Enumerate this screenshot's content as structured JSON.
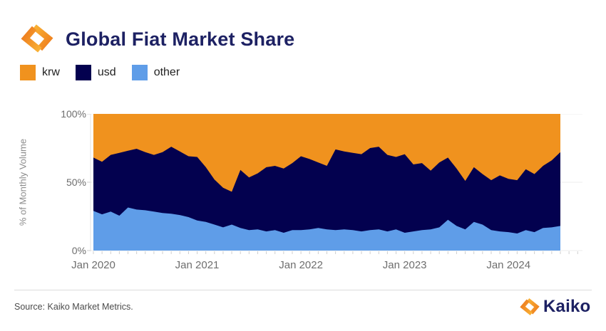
{
  "header": {
    "title": "Global Fiat Market Share"
  },
  "legend": {
    "items": [
      {
        "label": "krw",
        "color": "#F0921E"
      },
      {
        "label": "usd",
        "color": "#03014F"
      },
      {
        "label": "other",
        "color": "#5F9DE8"
      }
    ]
  },
  "chart_data": {
    "type": "area",
    "stacked": true,
    "stack_order_bottom_to_top": [
      "other",
      "usd",
      "krw"
    ],
    "title": "Global Fiat Market Share",
    "xlabel": "",
    "ylabel": "% of Monthly Volume",
    "ylim": [
      0,
      100
    ],
    "unit": "%",
    "grid": "horizontal lines at 0%, 50%, 100%",
    "legend_position": "top-left",
    "y_ticks": [
      {
        "label": "0%",
        "value": 0
      },
      {
        "label": "50%",
        "value": 50
      },
      {
        "label": "100%",
        "value": 100
      }
    ],
    "x_ticks": [
      {
        "label": "Jan 2020",
        "index": 0
      },
      {
        "label": "Jan 2021",
        "index": 12
      },
      {
        "label": "Jan 2022",
        "index": 24
      },
      {
        "label": "Jan 2023",
        "index": 36
      },
      {
        "label": "Jan 2024",
        "index": 48
      }
    ],
    "x": [
      "2020-01",
      "2020-02",
      "2020-03",
      "2020-04",
      "2020-05",
      "2020-06",
      "2020-07",
      "2020-08",
      "2020-09",
      "2020-10",
      "2020-11",
      "2020-12",
      "2021-01",
      "2021-02",
      "2021-03",
      "2021-04",
      "2021-05",
      "2021-06",
      "2021-07",
      "2021-08",
      "2021-09",
      "2021-10",
      "2021-11",
      "2021-12",
      "2022-01",
      "2022-02",
      "2022-03",
      "2022-04",
      "2022-05",
      "2022-06",
      "2022-07",
      "2022-08",
      "2022-09",
      "2022-10",
      "2022-11",
      "2022-12",
      "2023-01",
      "2023-02",
      "2023-03",
      "2023-04",
      "2023-05",
      "2023-06",
      "2023-07",
      "2023-08",
      "2023-09",
      "2023-10",
      "2023-11",
      "2023-12",
      "2024-01",
      "2024-02",
      "2024-03",
      "2024-04",
      "2024-05",
      "2024-06",
      "2024-07"
    ],
    "series": [
      {
        "name": "krw",
        "color": "#F0921E",
        "values": [
          32,
          35,
          30,
          28.5,
          27,
          25.5,
          28,
          30,
          28,
          24,
          27.5,
          31,
          31.5,
          39,
          48,
          54,
          57,
          41,
          46.5,
          43.5,
          39,
          38,
          40,
          36,
          31,
          33,
          35.5,
          38,
          26,
          27.5,
          28.5,
          29.5,
          25,
          24,
          30,
          31.5,
          29.5,
          37,
          36,
          41.5,
          35.5,
          32,
          40,
          49,
          39,
          44,
          48.5,
          45,
          47.5,
          48.5,
          40.5,
          44,
          38,
          34,
          28
        ]
      },
      {
        "name": "usd",
        "color": "#03014F",
        "values": [
          39,
          38.5,
          41.5,
          46,
          41.5,
          44.5,
          42.5,
          41.5,
          44.5,
          49,
          46.5,
          44.5,
          46.5,
          40,
          33,
          29,
          24,
          42.5,
          38.5,
          41,
          47,
          47,
          47,
          49,
          54,
          51.5,
          48,
          46.5,
          59,
          57,
          56.5,
          56.5,
          60,
          60.5,
          56,
          53,
          57.5,
          49,
          49,
          43,
          47.5,
          45.5,
          42,
          35.5,
          40,
          37,
          36.5,
          41,
          39,
          39,
          44.5,
          42.5,
          45.5,
          49,
          54
        ]
      },
      {
        "name": "other",
        "color": "#5F9DE8",
        "values": [
          29,
          26.5,
          28.5,
          25.5,
          31.5,
          30,
          29.5,
          28.5,
          27.5,
          27,
          26,
          24.5,
          22,
          21,
          19,
          17,
          19,
          16.5,
          15,
          15.5,
          14,
          15,
          13,
          15,
          15,
          15.5,
          16.5,
          15.5,
          15,
          15.5,
          15,
          14,
          15,
          15.5,
          14,
          15.5,
          13,
          14,
          15,
          15.5,
          17,
          22.5,
          18,
          15.5,
          21,
          19,
          15,
          14,
          13.5,
          12.5,
          15,
          13.5,
          16.5,
          17,
          18
        ]
      }
    ]
  },
  "footer": {
    "source": "Source: Kaiko Market Metrics.",
    "brand": "Kaiko"
  }
}
